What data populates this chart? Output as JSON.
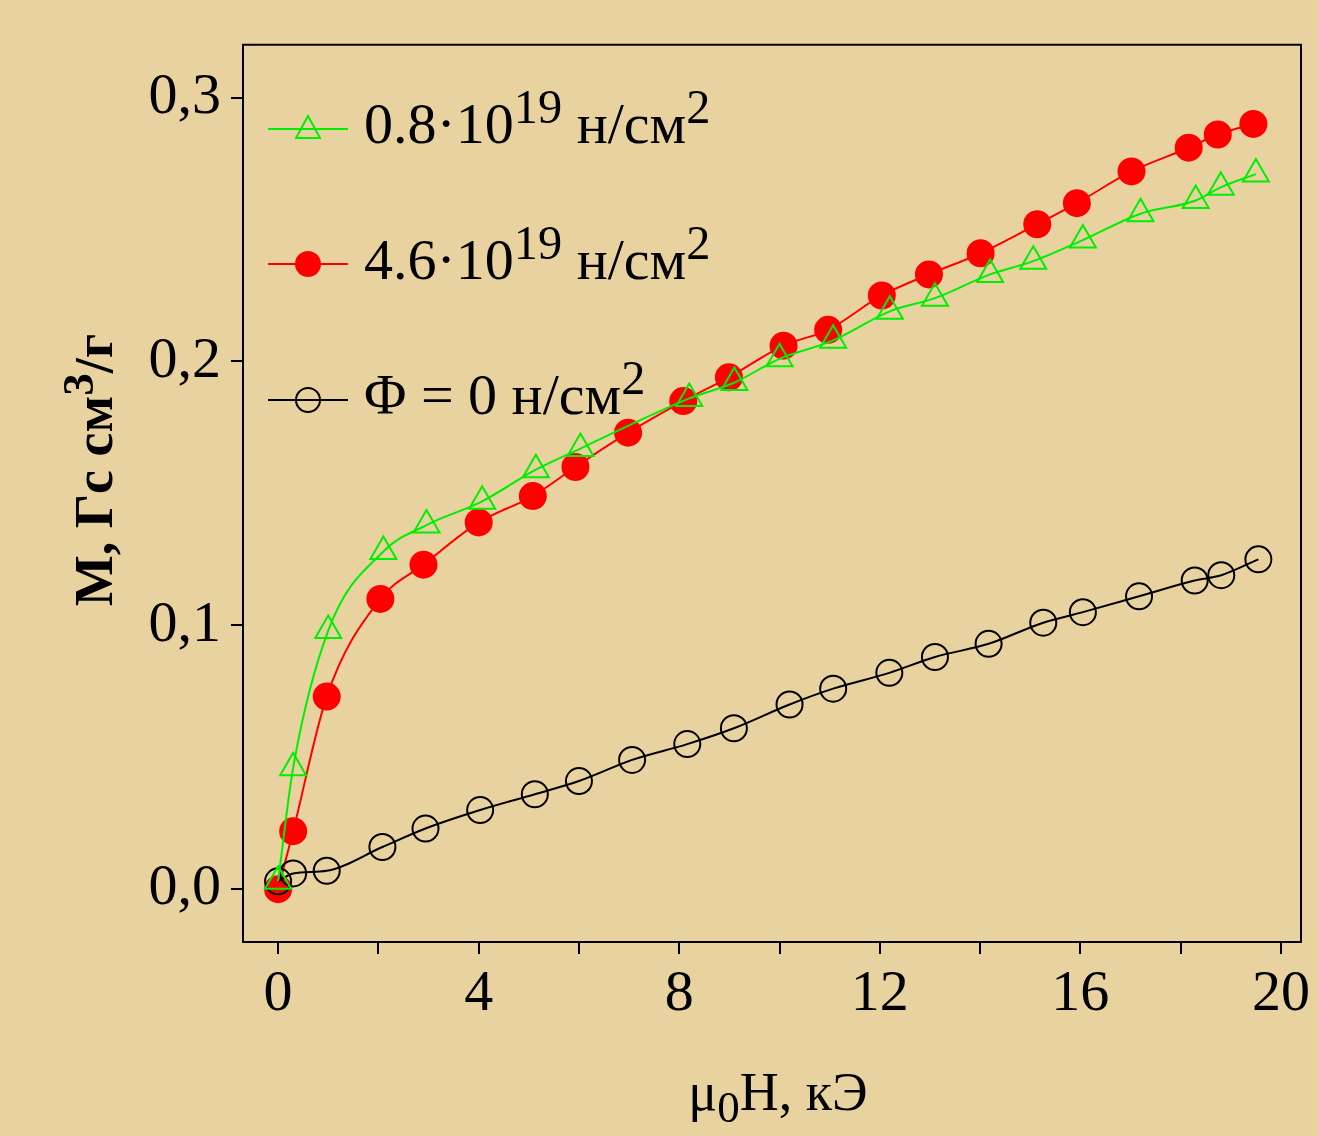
{
  "chart_data": {
    "type": "line",
    "xlabel": "μ$_{0}$H, кЭ",
    "ylabel": "M, Гс см$^{3}$/г",
    "xlim": [
      -0.7,
      20.4
    ],
    "ylim": [
      -0.02,
      0.32
    ],
    "xticks": [
      0,
      {
        "value": 2,
        "label": null
      },
      4,
      {
        "value": 6,
        "label": null
      },
      8,
      {
        "value": 10,
        "label": null
      },
      12,
      {
        "value": 14,
        "label": null
      },
      16,
      {
        "value": 18,
        "label": null
      },
      20
    ],
    "yticks": [
      {
        "value": 0,
        "label": "0,0"
      },
      {
        "value": 0.1,
        "label": "0,1"
      },
      {
        "value": 0.2,
        "label": "0,2"
      },
      {
        "value": 0.3,
        "label": "0,3"
      }
    ],
    "legend": "top left",
    "series": [
      {
        "name": "0.8·10$^{19}$ н/см$^{2}$",
        "color": "#00ee00",
        "marker": "triangle",
        "x": [
          0,
          0.3,
          1.0,
          2.1,
          2.96,
          4.07,
          5.14,
          6.03,
          8.2,
          9.1,
          10.0,
          11.07,
          12.2,
          13.1,
          14.2,
          15.06,
          16.05,
          17.2,
          18.3,
          18.8,
          19.5
        ],
        "values": [
          0.003,
          0.046,
          0.098,
          0.128,
          0.138,
          0.147,
          0.159,
          0.167,
          0.186,
          0.192,
          0.201,
          0.208,
          0.219,
          0.224,
          0.233,
          0.238,
          0.246,
          0.256,
          0.261,
          0.266,
          0.271
        ]
      },
      {
        "name": "4.6·10$^{19}$ н/см$^{2}$",
        "color": "#ff0000",
        "marker": "circle",
        "x": [
          0,
          0.3,
          0.97,
          2.04,
          2.9,
          4.0,
          5.08,
          5.93,
          6.98,
          8.08,
          8.99,
          10.08,
          10.97,
          12.04,
          12.98,
          14.01,
          15.14,
          15.93,
          17.02,
          18.16,
          18.74,
          19.45
        ],
        "values": [
          0.0,
          0.022,
          0.073,
          0.11,
          0.123,
          0.139,
          0.149,
          0.16,
          0.173,
          0.185,
          0.194,
          0.206,
          0.212,
          0.225,
          0.233,
          0.241,
          0.252,
          0.26,
          0.272,
          0.281,
          0.286,
          0.29
        ]
      },
      {
        "name": "Φ = 0 н/см$^{2}$",
        "color": "#000000",
        "marker": "circle",
        "x": [
          0,
          0.3,
          0.97,
          2.08,
          2.94,
          4.03,
          5.12,
          6.0,
          7.06,
          8.16,
          9.09,
          10.2,
          11.07,
          12.19,
          13.1,
          14.17,
          15.26,
          16.05,
          17.17,
          18.28,
          18.81,
          19.55
        ],
        "values": [
          0.003,
          0.006,
          0.007,
          0.016,
          0.023,
          0.03,
          0.036,
          0.041,
          0.049,
          0.055,
          0.061,
          0.07,
          0.076,
          0.082,
          0.088,
          0.093,
          0.101,
          0.105,
          0.111,
          0.117,
          0.119,
          0.125
        ]
      }
    ]
  }
}
